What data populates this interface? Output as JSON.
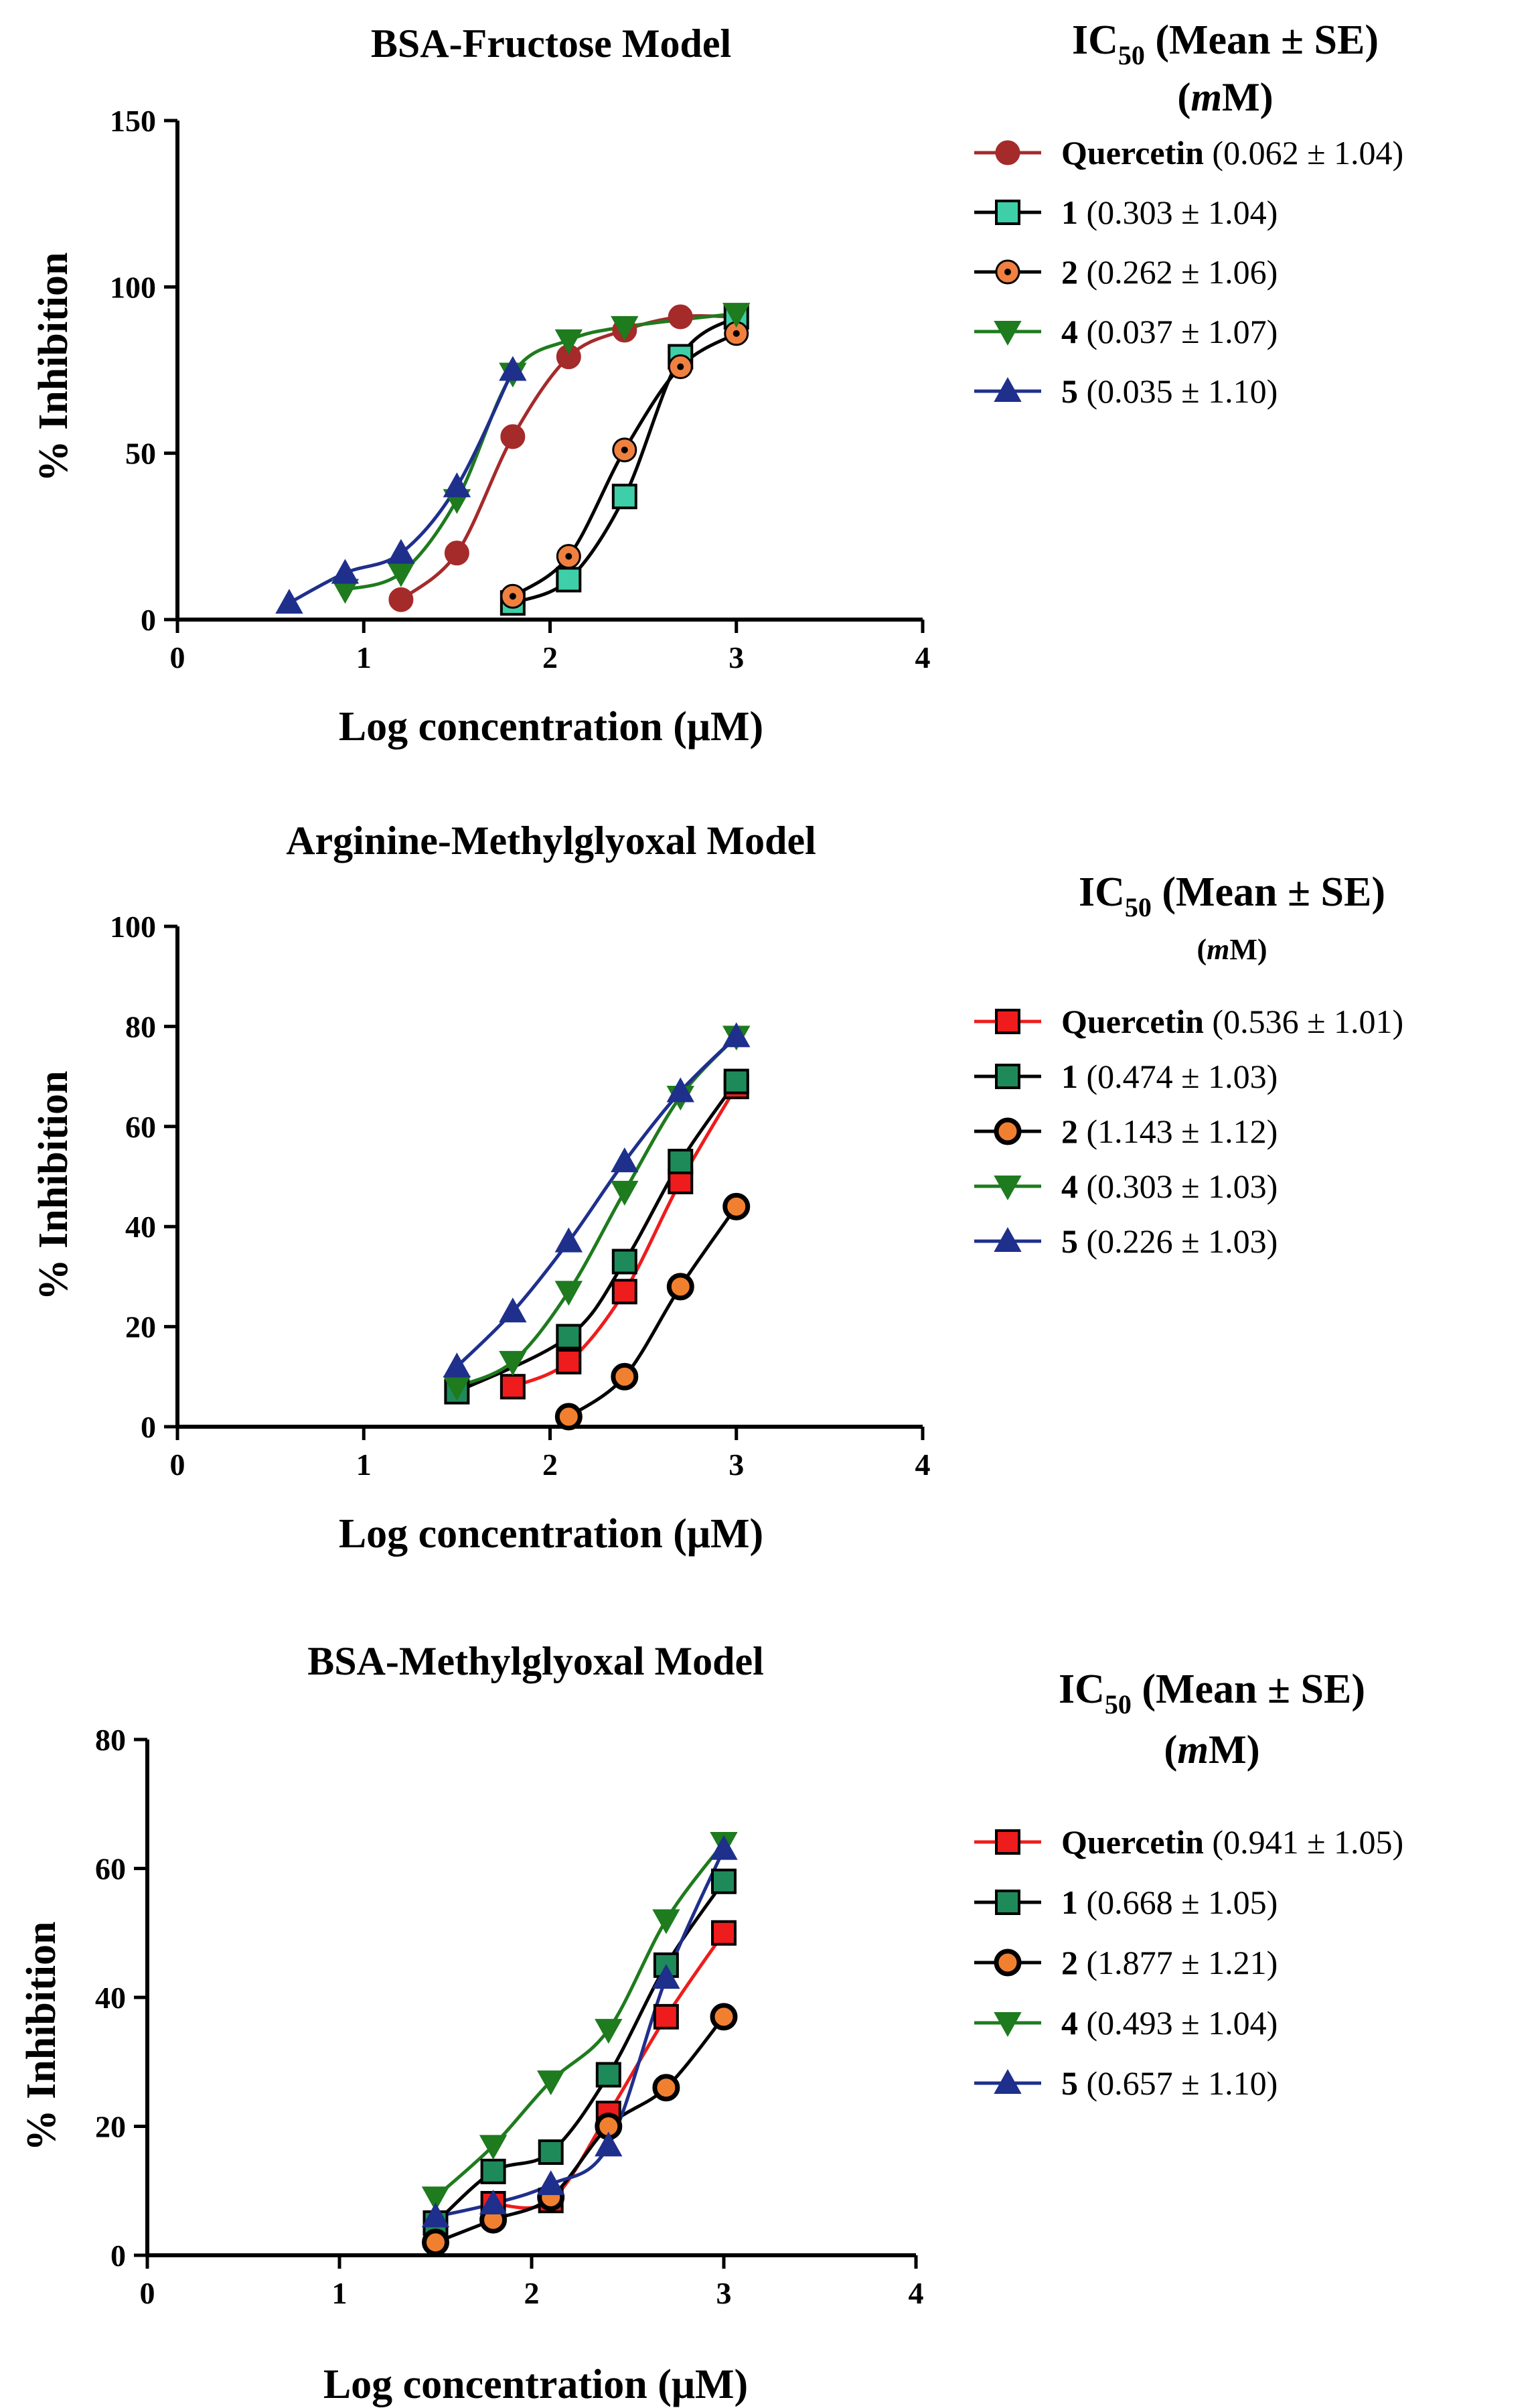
{
  "chart_data": [
    {
      "type": "line",
      "title": "BSA-Fructose Model",
      "xlabel": "Log concentration (μM)",
      "ylabel": "% Inhibition",
      "xlim": [
        0,
        4
      ],
      "ylim": [
        0,
        150
      ],
      "xticks": [
        "0",
        "1",
        "2",
        "3",
        "4"
      ],
      "yticks": [
        "0",
        "50",
        "100",
        "150"
      ],
      "legend_title": "IC50 (Mean ± SE) (mM)",
      "series": [
        {
          "name": "Quercetin",
          "ic50": "(0.062 ± 1.04)",
          "color": "#a52a2a",
          "marker": "circle",
          "x": [
            1.2,
            1.5,
            1.8,
            2.1,
            2.4,
            2.7,
            3.0
          ],
          "y": [
            6,
            20,
            55,
            79,
            87,
            91,
            91
          ]
        },
        {
          "name": "1",
          "ic50": "(0.303 ± 1.04)",
          "color": "#3ecfa8",
          "marker": "square",
          "x": [
            1.8,
            2.1,
            2.4,
            2.7,
            3.0
          ],
          "y": [
            5,
            12,
            37,
            79,
            91
          ]
        },
        {
          "name": "2",
          "ic50": "(0.262 ± 1.06)",
          "color": "#f08040",
          "marker": "ring-dot",
          "x": [
            1.8,
            2.1,
            2.4,
            2.7,
            3.0
          ],
          "y": [
            7,
            19,
            51,
            76,
            86
          ]
        },
        {
          "name": "4",
          "ic50": "(0.037 ± 1.07)",
          "color": "#1e7b1e",
          "marker": "triangle-down",
          "x": [
            0.9,
            1.2,
            1.5,
            1.8,
            2.1,
            2.4,
            3.0
          ],
          "y": [
            9,
            14,
            36,
            74,
            84,
            88,
            92
          ]
        },
        {
          "name": "5",
          "ic50": "(0.035 ± 1.10)",
          "color": "#1f2f8c",
          "marker": "triangle-up",
          "x": [
            0.6,
            0.9,
            1.2,
            1.5,
            1.8
          ],
          "y": [
            5,
            14,
            20,
            40,
            75
          ]
        }
      ]
    },
    {
      "type": "line",
      "title": "Arginine-Methylglyoxal Model",
      "xlabel": "Log concentration (μM)",
      "ylabel": "% Inhibition",
      "xlim": [
        0,
        4
      ],
      "ylim": [
        0,
        100
      ],
      "xticks": [
        "0",
        "1",
        "2",
        "3",
        "4"
      ],
      "yticks": [
        "0",
        "20",
        "40",
        "60",
        "80",
        "100"
      ],
      "legend_title": "IC50 (Mean ± SE) (mM)",
      "series": [
        {
          "name": "Quercetin",
          "ic50": "(0.536 ± 1.01)",
          "color": "#ee1c1c",
          "marker": "square",
          "x": [
            1.8,
            2.1,
            2.4,
            2.7,
            3.0
          ],
          "y": [
            8,
            13,
            27,
            49,
            68
          ]
        },
        {
          "name": "1",
          "ic50": "(0.474 ± 1.03)",
          "color": "#1e8a5a",
          "marker": "square",
          "x": [
            1.5,
            2.1,
            2.4,
            2.7,
            3.0
          ],
          "y": [
            7,
            18,
            33,
            53,
            69
          ]
        },
        {
          "name": "2",
          "ic50": "(1.143 ± 1.12)",
          "color": "#f08030",
          "marker": "circle-bold",
          "x": [
            2.1,
            2.4,
            2.7,
            3.0
          ],
          "y": [
            2,
            10,
            28,
            44
          ]
        },
        {
          "name": "4",
          "ic50": "(0.303 ± 1.03)",
          "color": "#1e7b1e",
          "marker": "triangle-down",
          "x": [
            1.5,
            1.8,
            2.1,
            2.4,
            2.7,
            3.0
          ],
          "y": [
            8,
            13,
            27,
            47,
            66,
            78
          ]
        },
        {
          "name": "5",
          "ic50": "(0.226 ± 1.03)",
          "color": "#1f2f8c",
          "marker": "triangle-up",
          "x": [
            1.5,
            1.8,
            2.1,
            2.4,
            2.7,
            3.0
          ],
          "y": [
            12,
            23,
            37,
            53,
            67,
            78
          ]
        }
      ]
    },
    {
      "type": "line",
      "title": "BSA-Methylglyoxal Model",
      "xlabel": "Log concentration (μM)",
      "ylabel": "% Inhibition",
      "xlim": [
        0,
        4
      ],
      "ylim": [
        0,
        80
      ],
      "xticks": [
        "0",
        "1",
        "2",
        "3",
        "4"
      ],
      "yticks": [
        "0",
        "20",
        "40",
        "60",
        "80"
      ],
      "legend_title": "IC50 (Mean ± SE) (mM)",
      "series": [
        {
          "name": "Quercetin",
          "ic50": "(0.941 ± 1.05)",
          "color": "#ee1c1c",
          "marker": "square",
          "x": [
            1.8,
            2.1,
            2.4,
            2.7,
            3.0
          ],
          "y": [
            8,
            8.5,
            22,
            37,
            50
          ]
        },
        {
          "name": "1",
          "ic50": "(0.668 ± 1.05)",
          "color": "#1e8a5a",
          "marker": "square",
          "x": [
            1.5,
            1.8,
            2.1,
            2.4,
            2.7,
            3.0
          ],
          "y": [
            5,
            13,
            16,
            28,
            45,
            58
          ]
        },
        {
          "name": "2",
          "ic50": "(1.877 ± 1.21)",
          "color": "#f08030",
          "marker": "circle-bold",
          "x": [
            1.5,
            1.8,
            2.1,
            2.4,
            2.7,
            3.0
          ],
          "y": [
            2,
            5.5,
            9,
            20,
            26,
            37
          ]
        },
        {
          "name": "4",
          "ic50": "(0.493 ± 1.04)",
          "color": "#1e7b1e",
          "marker": "triangle-down",
          "x": [
            1.5,
            1.8,
            2.1,
            2.4,
            2.7,
            3.0
          ],
          "y": [
            9,
            17,
            27,
            35,
            52,
            64
          ]
        },
        {
          "name": "5",
          "ic50": "(0.657 ± 1.10)",
          "color": "#1f2f8c",
          "marker": "triangle-up",
          "x": [
            1.5,
            1.8,
            2.1,
            2.4,
            2.7,
            3.0
          ],
          "y": [
            6,
            8,
            11,
            17,
            43,
            63
          ]
        }
      ]
    }
  ]
}
